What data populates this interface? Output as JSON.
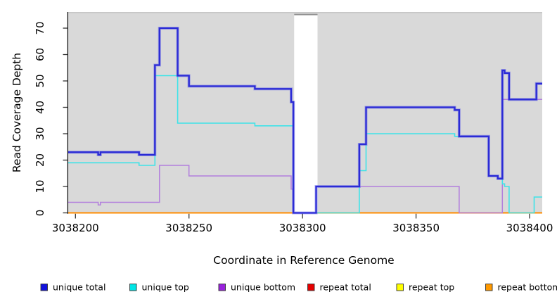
{
  "chart_data": {
    "type": "line",
    "subtype": "step",
    "title": "",
    "xlabel": "Coordinate in Reference Genome",
    "ylabel": "Read Coverage Depth",
    "x_ticks": [
      3038200,
      3038250,
      3038300,
      3038350,
      3038400
    ],
    "y_ticks": [
      0,
      10,
      20,
      30,
      40,
      50,
      60,
      70
    ],
    "xlim": [
      3038196.8,
      3038405.6
    ],
    "ylim": [
      0,
      76
    ],
    "grid": "off",
    "plot_background": "#d9d9d9",
    "plot_top_border_color": "#c6c6c6",
    "gap_region": {
      "x_from": 3038296,
      "x_to": 3038306,
      "fill": "#ffffff",
      "top_edge_color": "#8f8f8f",
      "note": "no-data gap, all series at 0"
    },
    "series": [
      {
        "name": "repeat total",
        "color": "#dd2222",
        "line_width": 1.5,
        "points": [
          [
            3038196.8,
            0
          ]
        ]
      },
      {
        "name": "repeat top",
        "color": "#ededed00",
        "line_width": 1.5,
        "points": [
          [
            3038196.8,
            0
          ]
        ]
      },
      {
        "name": "repeat bottom",
        "color": "#ff8c00",
        "line_width": 2,
        "points": [
          [
            3038196.8,
            0
          ]
        ]
      },
      {
        "name": "unique bottom",
        "color": "#b27fdd",
        "line_width": 1.5,
        "points": [
          [
            3038196.8,
            4
          ],
          [
            3038210,
            3
          ],
          [
            3038211,
            4
          ],
          [
            3038237,
            18
          ],
          [
            3038250,
            14
          ],
          [
            3038295,
            9
          ],
          [
            3038296,
            0
          ],
          [
            3038306,
            10
          ],
          [
            3038369,
            0
          ],
          [
            3038388,
            43
          ]
        ]
      },
      {
        "name": "unique top",
        "color": "#3fe3e8",
        "line_width": 1.6,
        "points": [
          [
            3038196.8,
            19
          ],
          [
            3038228,
            18
          ],
          [
            3038235,
            52
          ],
          [
            3038245,
            34
          ],
          [
            3038279,
            33
          ],
          [
            3038296,
            0
          ],
          [
            3038325,
            16
          ],
          [
            3038328,
            30
          ],
          [
            3038367,
            29
          ],
          [
            3038382,
            14
          ],
          [
            3038386,
            13
          ],
          [
            3038388,
            11
          ],
          [
            3038389,
            10
          ],
          [
            3038391,
            0
          ],
          [
            3038402,
            6
          ]
        ]
      },
      {
        "name": "unique total",
        "color": "#2b2bd5",
        "line_width": 2.3,
        "halo": true,
        "points": [
          [
            3038196.8,
            23
          ],
          [
            3038210,
            22
          ],
          [
            3038211,
            23
          ],
          [
            3038228,
            22
          ],
          [
            3038235,
            56
          ],
          [
            3038237,
            70
          ],
          [
            3038245,
            52
          ],
          [
            3038250,
            48
          ],
          [
            3038279,
            47
          ],
          [
            3038295,
            42
          ],
          [
            3038296,
            0
          ],
          [
            3038306,
            10
          ],
          [
            3038325,
            26
          ],
          [
            3038328,
            40
          ],
          [
            3038367,
            39
          ],
          [
            3038369,
            29
          ],
          [
            3038382,
            14
          ],
          [
            3038386,
            13
          ],
          [
            3038388,
            54
          ],
          [
            3038389,
            53
          ],
          [
            3038391,
            43
          ],
          [
            3038403,
            49
          ]
        ]
      }
    ],
    "legend": [
      {
        "label": "unique total",
        "color": "#1111dd"
      },
      {
        "label": "unique top",
        "color": "#00e5e5"
      },
      {
        "label": "unique bottom",
        "color": "#9922dd"
      },
      {
        "label": "repeat total",
        "color": "#e60000"
      },
      {
        "label": "repeat top",
        "color": "#ffff00"
      },
      {
        "label": "repeat bottom",
        "color": "#ff9900"
      }
    ],
    "legend_position": "bottom"
  }
}
